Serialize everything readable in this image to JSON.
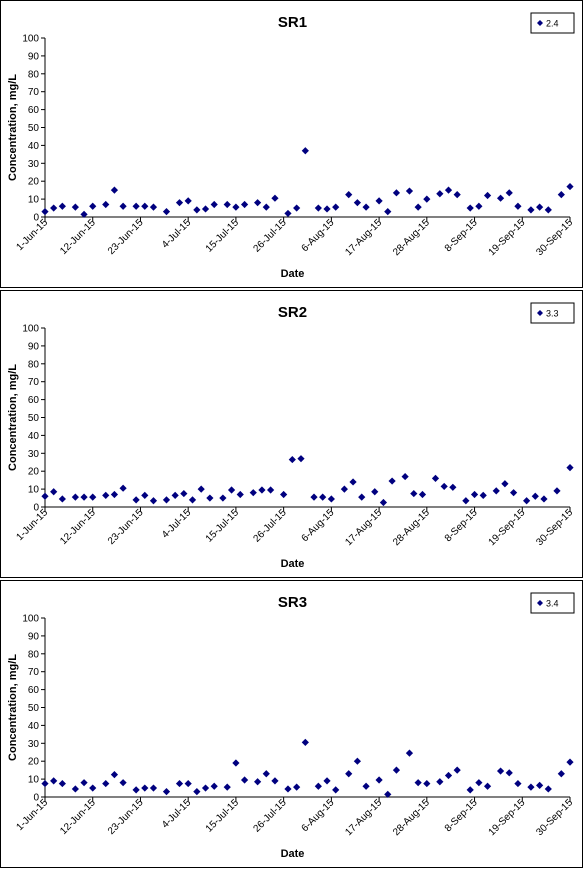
{
  "chart_data": [
    {
      "type": "scatter",
      "title": "SR1",
      "xlabel": "Date",
      "ylabel": "Concentration, mg/L",
      "ylim": [
        0,
        100
      ],
      "yticks": [
        0,
        10,
        20,
        30,
        40,
        50,
        60,
        70,
        80,
        90,
        100
      ],
      "xlim": [
        "2015-06-01",
        "2015-09-30"
      ],
      "xticks": [
        {
          "date": "2015-06-01",
          "label": "1-Jun-15"
        },
        {
          "date": "2015-06-12",
          "label": "12-Jun-15"
        },
        {
          "date": "2015-06-23",
          "label": "23-Jun-15"
        },
        {
          "date": "2015-07-04",
          "label": "4-Jul-15"
        },
        {
          "date": "2015-07-15",
          "label": "15-Jul-15"
        },
        {
          "date": "2015-07-26",
          "label": "26-Jul-15"
        },
        {
          "date": "2015-08-06",
          "label": "6-Aug-15"
        },
        {
          "date": "2015-08-17",
          "label": "17-Aug-15"
        },
        {
          "date": "2015-08-28",
          "label": "28-Aug-15"
        },
        {
          "date": "2015-09-08",
          "label": "8-Sep-15"
        },
        {
          "date": "2015-09-19",
          "label": "19-Sep-15"
        },
        {
          "date": "2015-09-30",
          "label": "30-Sep-15"
        }
      ],
      "legend": {
        "label": "2.4",
        "placement": "top-right"
      },
      "marker_color": "#00007f",
      "series": [
        {
          "name": "2.4",
          "points": [
            [
              "2015-06-01",
              3
            ],
            [
              "2015-06-03",
              5
            ],
            [
              "2015-06-05",
              6
            ],
            [
              "2015-06-08",
              5.5
            ],
            [
              "2015-06-10",
              1.5
            ],
            [
              "2015-06-12",
              6
            ],
            [
              "2015-06-15",
              7
            ],
            [
              "2015-06-17",
              15
            ],
            [
              "2015-06-19",
              6
            ],
            [
              "2015-06-22",
              6
            ],
            [
              "2015-06-24",
              6
            ],
            [
              "2015-06-26",
              5.5
            ],
            [
              "2015-06-29",
              3
            ],
            [
              "2015-07-02",
              8
            ],
            [
              "2015-07-04",
              9
            ],
            [
              "2015-07-06",
              4
            ],
            [
              "2015-07-08",
              4.5
            ],
            [
              "2015-07-10",
              7
            ],
            [
              "2015-07-13",
              7
            ],
            [
              "2015-07-15",
              5.5
            ],
            [
              "2015-07-17",
              7
            ],
            [
              "2015-07-20",
              8
            ],
            [
              "2015-07-22",
              5.5
            ],
            [
              "2015-07-24",
              10.5
            ],
            [
              "2015-07-27",
              2
            ],
            [
              "2015-07-29",
              5
            ],
            [
              "2015-07-31",
              37
            ],
            [
              "2015-08-03",
              5
            ],
            [
              "2015-08-05",
              4.5
            ],
            [
              "2015-08-07",
              5.5
            ],
            [
              "2015-08-10",
              12.5
            ],
            [
              "2015-08-12",
              8
            ],
            [
              "2015-08-14",
              5.5
            ],
            [
              "2015-08-17",
              9
            ],
            [
              "2015-08-19",
              3
            ],
            [
              "2015-08-21",
              13.5
            ],
            [
              "2015-08-24",
              14.5
            ],
            [
              "2015-08-26",
              5.5
            ],
            [
              "2015-08-28",
              10
            ],
            [
              "2015-08-31",
              13
            ],
            [
              "2015-09-02",
              15
            ],
            [
              "2015-09-04",
              12.5
            ],
            [
              "2015-09-07",
              5
            ],
            [
              "2015-09-09",
              6
            ],
            [
              "2015-09-11",
              12
            ],
            [
              "2015-09-14",
              10.5
            ],
            [
              "2015-09-16",
              13.5
            ],
            [
              "2015-09-18",
              6
            ],
            [
              "2015-09-21",
              4
            ],
            [
              "2015-09-23",
              5.5
            ],
            [
              "2015-09-25",
              4
            ],
            [
              "2015-09-28",
              12.5
            ],
            [
              "2015-09-30",
              17
            ]
          ]
        }
      ]
    },
    {
      "type": "scatter",
      "title": "SR2",
      "xlabel": "Date",
      "ylabel": "Concentration, mg/L",
      "ylim": [
        0,
        100
      ],
      "yticks": [
        0,
        10,
        20,
        30,
        40,
        50,
        60,
        70,
        80,
        90,
        100
      ],
      "xlim": [
        "2015-06-01",
        "2015-09-30"
      ],
      "xticks": [
        {
          "date": "2015-06-01",
          "label": "1-Jun-15"
        },
        {
          "date": "2015-06-12",
          "label": "12-Jun-15"
        },
        {
          "date": "2015-06-23",
          "label": "23-Jun-15"
        },
        {
          "date": "2015-07-04",
          "label": "4-Jul-15"
        },
        {
          "date": "2015-07-15",
          "label": "15-Jul-15"
        },
        {
          "date": "2015-07-26",
          "label": "26-Jul-15"
        },
        {
          "date": "2015-08-06",
          "label": "6-Aug-15"
        },
        {
          "date": "2015-08-17",
          "label": "17-Aug-15"
        },
        {
          "date": "2015-08-28",
          "label": "28-Aug-15"
        },
        {
          "date": "2015-09-08",
          "label": "8-Sep-15"
        },
        {
          "date": "2015-09-19",
          "label": "19-Sep-15"
        },
        {
          "date": "2015-09-30",
          "label": "30-Sep-15"
        }
      ],
      "legend": {
        "label": "3.3",
        "placement": "top-right"
      },
      "marker_color": "#00007f",
      "series": [
        {
          "name": "3.3",
          "points": [
            [
              "2015-06-01",
              6
            ],
            [
              "2015-06-03",
              8.5
            ],
            [
              "2015-06-05",
              4.5
            ],
            [
              "2015-06-08",
              5.5
            ],
            [
              "2015-06-10",
              5.5
            ],
            [
              "2015-06-12",
              5.5
            ],
            [
              "2015-06-15",
              6.5
            ],
            [
              "2015-06-17",
              7
            ],
            [
              "2015-06-19",
              10.5
            ],
            [
              "2015-06-22",
              4
            ],
            [
              "2015-06-24",
              6.5
            ],
            [
              "2015-06-26",
              3.5
            ],
            [
              "2015-06-29",
              4
            ],
            [
              "2015-07-01",
              6.5
            ],
            [
              "2015-07-03",
              7.5
            ],
            [
              "2015-07-05",
              4
            ],
            [
              "2015-07-07",
              10
            ],
            [
              "2015-07-09",
              5
            ],
            [
              "2015-07-12",
              5
            ],
            [
              "2015-07-14",
              9.5
            ],
            [
              "2015-07-16",
              7
            ],
            [
              "2015-07-19",
              8
            ],
            [
              "2015-07-21",
              9.5
            ],
            [
              "2015-07-23",
              9.5
            ],
            [
              "2015-07-26",
              7
            ],
            [
              "2015-07-28",
              26.5
            ],
            [
              "2015-07-30",
              27
            ],
            [
              "2015-08-02",
              5.5
            ],
            [
              "2015-08-04",
              5.5
            ],
            [
              "2015-08-06",
              4.5
            ],
            [
              "2015-08-09",
              10
            ],
            [
              "2015-08-11",
              14
            ],
            [
              "2015-08-13",
              5.5
            ],
            [
              "2015-08-16",
              8.5
            ],
            [
              "2015-08-18",
              2.5
            ],
            [
              "2015-08-20",
              14.5
            ],
            [
              "2015-08-23",
              17
            ],
            [
              "2015-08-25",
              7.5
            ],
            [
              "2015-08-27",
              7
            ],
            [
              "2015-08-30",
              16
            ],
            [
              "2015-09-01",
              11.5
            ],
            [
              "2015-09-03",
              11
            ],
            [
              "2015-09-06",
              3.5
            ],
            [
              "2015-09-08",
              7
            ],
            [
              "2015-09-10",
              6.5
            ],
            [
              "2015-09-13",
              9
            ],
            [
              "2015-09-15",
              13
            ],
            [
              "2015-09-17",
              8
            ],
            [
              "2015-09-20",
              3.5
            ],
            [
              "2015-09-22",
              6
            ],
            [
              "2015-09-24",
              4.5
            ],
            [
              "2015-09-27",
              9
            ],
            [
              "2015-09-30",
              22
            ]
          ]
        }
      ]
    },
    {
      "type": "scatter",
      "title": "SR3",
      "xlabel": "Date",
      "ylabel": "Concentration, mg/L",
      "ylim": [
        0,
        100
      ],
      "yticks": [
        0,
        10,
        20,
        30,
        40,
        50,
        60,
        70,
        80,
        90,
        100
      ],
      "xlim": [
        "2015-06-01",
        "2015-09-30"
      ],
      "xticks": [
        {
          "date": "2015-06-01",
          "label": "1-Jun-15"
        },
        {
          "date": "2015-06-12",
          "label": "12-Jun-15"
        },
        {
          "date": "2015-06-23",
          "label": "23-Jun-15"
        },
        {
          "date": "2015-07-04",
          "label": "4-Jul-15"
        },
        {
          "date": "2015-07-15",
          "label": "15-Jul-15"
        },
        {
          "date": "2015-07-26",
          "label": "26-Jul-15"
        },
        {
          "date": "2015-08-06",
          "label": "6-Aug-15"
        },
        {
          "date": "2015-08-17",
          "label": "17-Aug-15"
        },
        {
          "date": "2015-08-28",
          "label": "28-Aug-15"
        },
        {
          "date": "2015-09-08",
          "label": "8-Sep-15"
        },
        {
          "date": "2015-09-19",
          "label": "19-Sep-15"
        },
        {
          "date": "2015-09-30",
          "label": "30-Sep-15"
        }
      ],
      "legend": {
        "label": "3.4",
        "placement": "top-right"
      },
      "marker_color": "#00007f",
      "series": [
        {
          "name": "3.4",
          "points": [
            [
              "2015-06-01",
              7.5
            ],
            [
              "2015-06-03",
              9
            ],
            [
              "2015-06-05",
              7.5
            ],
            [
              "2015-06-08",
              4.5
            ],
            [
              "2015-06-10",
              8
            ],
            [
              "2015-06-12",
              5
            ],
            [
              "2015-06-15",
              7.5
            ],
            [
              "2015-06-17",
              12.5
            ],
            [
              "2015-06-19",
              8
            ],
            [
              "2015-06-22",
              4
            ],
            [
              "2015-06-24",
              5
            ],
            [
              "2015-06-26",
              5
            ],
            [
              "2015-06-29",
              3
            ],
            [
              "2015-07-02",
              7.5
            ],
            [
              "2015-07-04",
              7.5
            ],
            [
              "2015-07-06",
              3
            ],
            [
              "2015-07-08",
              5
            ],
            [
              "2015-07-10",
              6
            ],
            [
              "2015-07-13",
              5.5
            ],
            [
              "2015-07-15",
              19
            ],
            [
              "2015-07-17",
              9.5
            ],
            [
              "2015-07-20",
              8.5
            ],
            [
              "2015-07-22",
              13
            ],
            [
              "2015-07-24",
              9
            ],
            [
              "2015-07-27",
              4.5
            ],
            [
              "2015-07-29",
              5.5
            ],
            [
              "2015-07-31",
              30.5
            ],
            [
              "2015-08-03",
              6
            ],
            [
              "2015-08-05",
              9
            ],
            [
              "2015-08-07",
              4
            ],
            [
              "2015-08-10",
              13
            ],
            [
              "2015-08-12",
              20
            ],
            [
              "2015-08-14",
              6
            ],
            [
              "2015-08-17",
              9.5
            ],
            [
              "2015-08-19",
              1.5
            ],
            [
              "2015-08-21",
              15
            ],
            [
              "2015-08-24",
              24.5
            ],
            [
              "2015-08-26",
              8
            ],
            [
              "2015-08-28",
              7.5
            ],
            [
              "2015-08-31",
              8.5
            ],
            [
              "2015-09-02",
              12
            ],
            [
              "2015-09-04",
              15
            ],
            [
              "2015-09-07",
              4
            ],
            [
              "2015-09-09",
              8
            ],
            [
              "2015-09-11",
              6
            ],
            [
              "2015-09-14",
              14.5
            ],
            [
              "2015-09-16",
              13.5
            ],
            [
              "2015-09-18",
              7.5
            ],
            [
              "2015-09-21",
              5.5
            ],
            [
              "2015-09-23",
              6.5
            ],
            [
              "2015-09-25",
              4.5
            ],
            [
              "2015-09-28",
              13
            ],
            [
              "2015-09-30",
              19.5
            ]
          ]
        }
      ]
    }
  ]
}
